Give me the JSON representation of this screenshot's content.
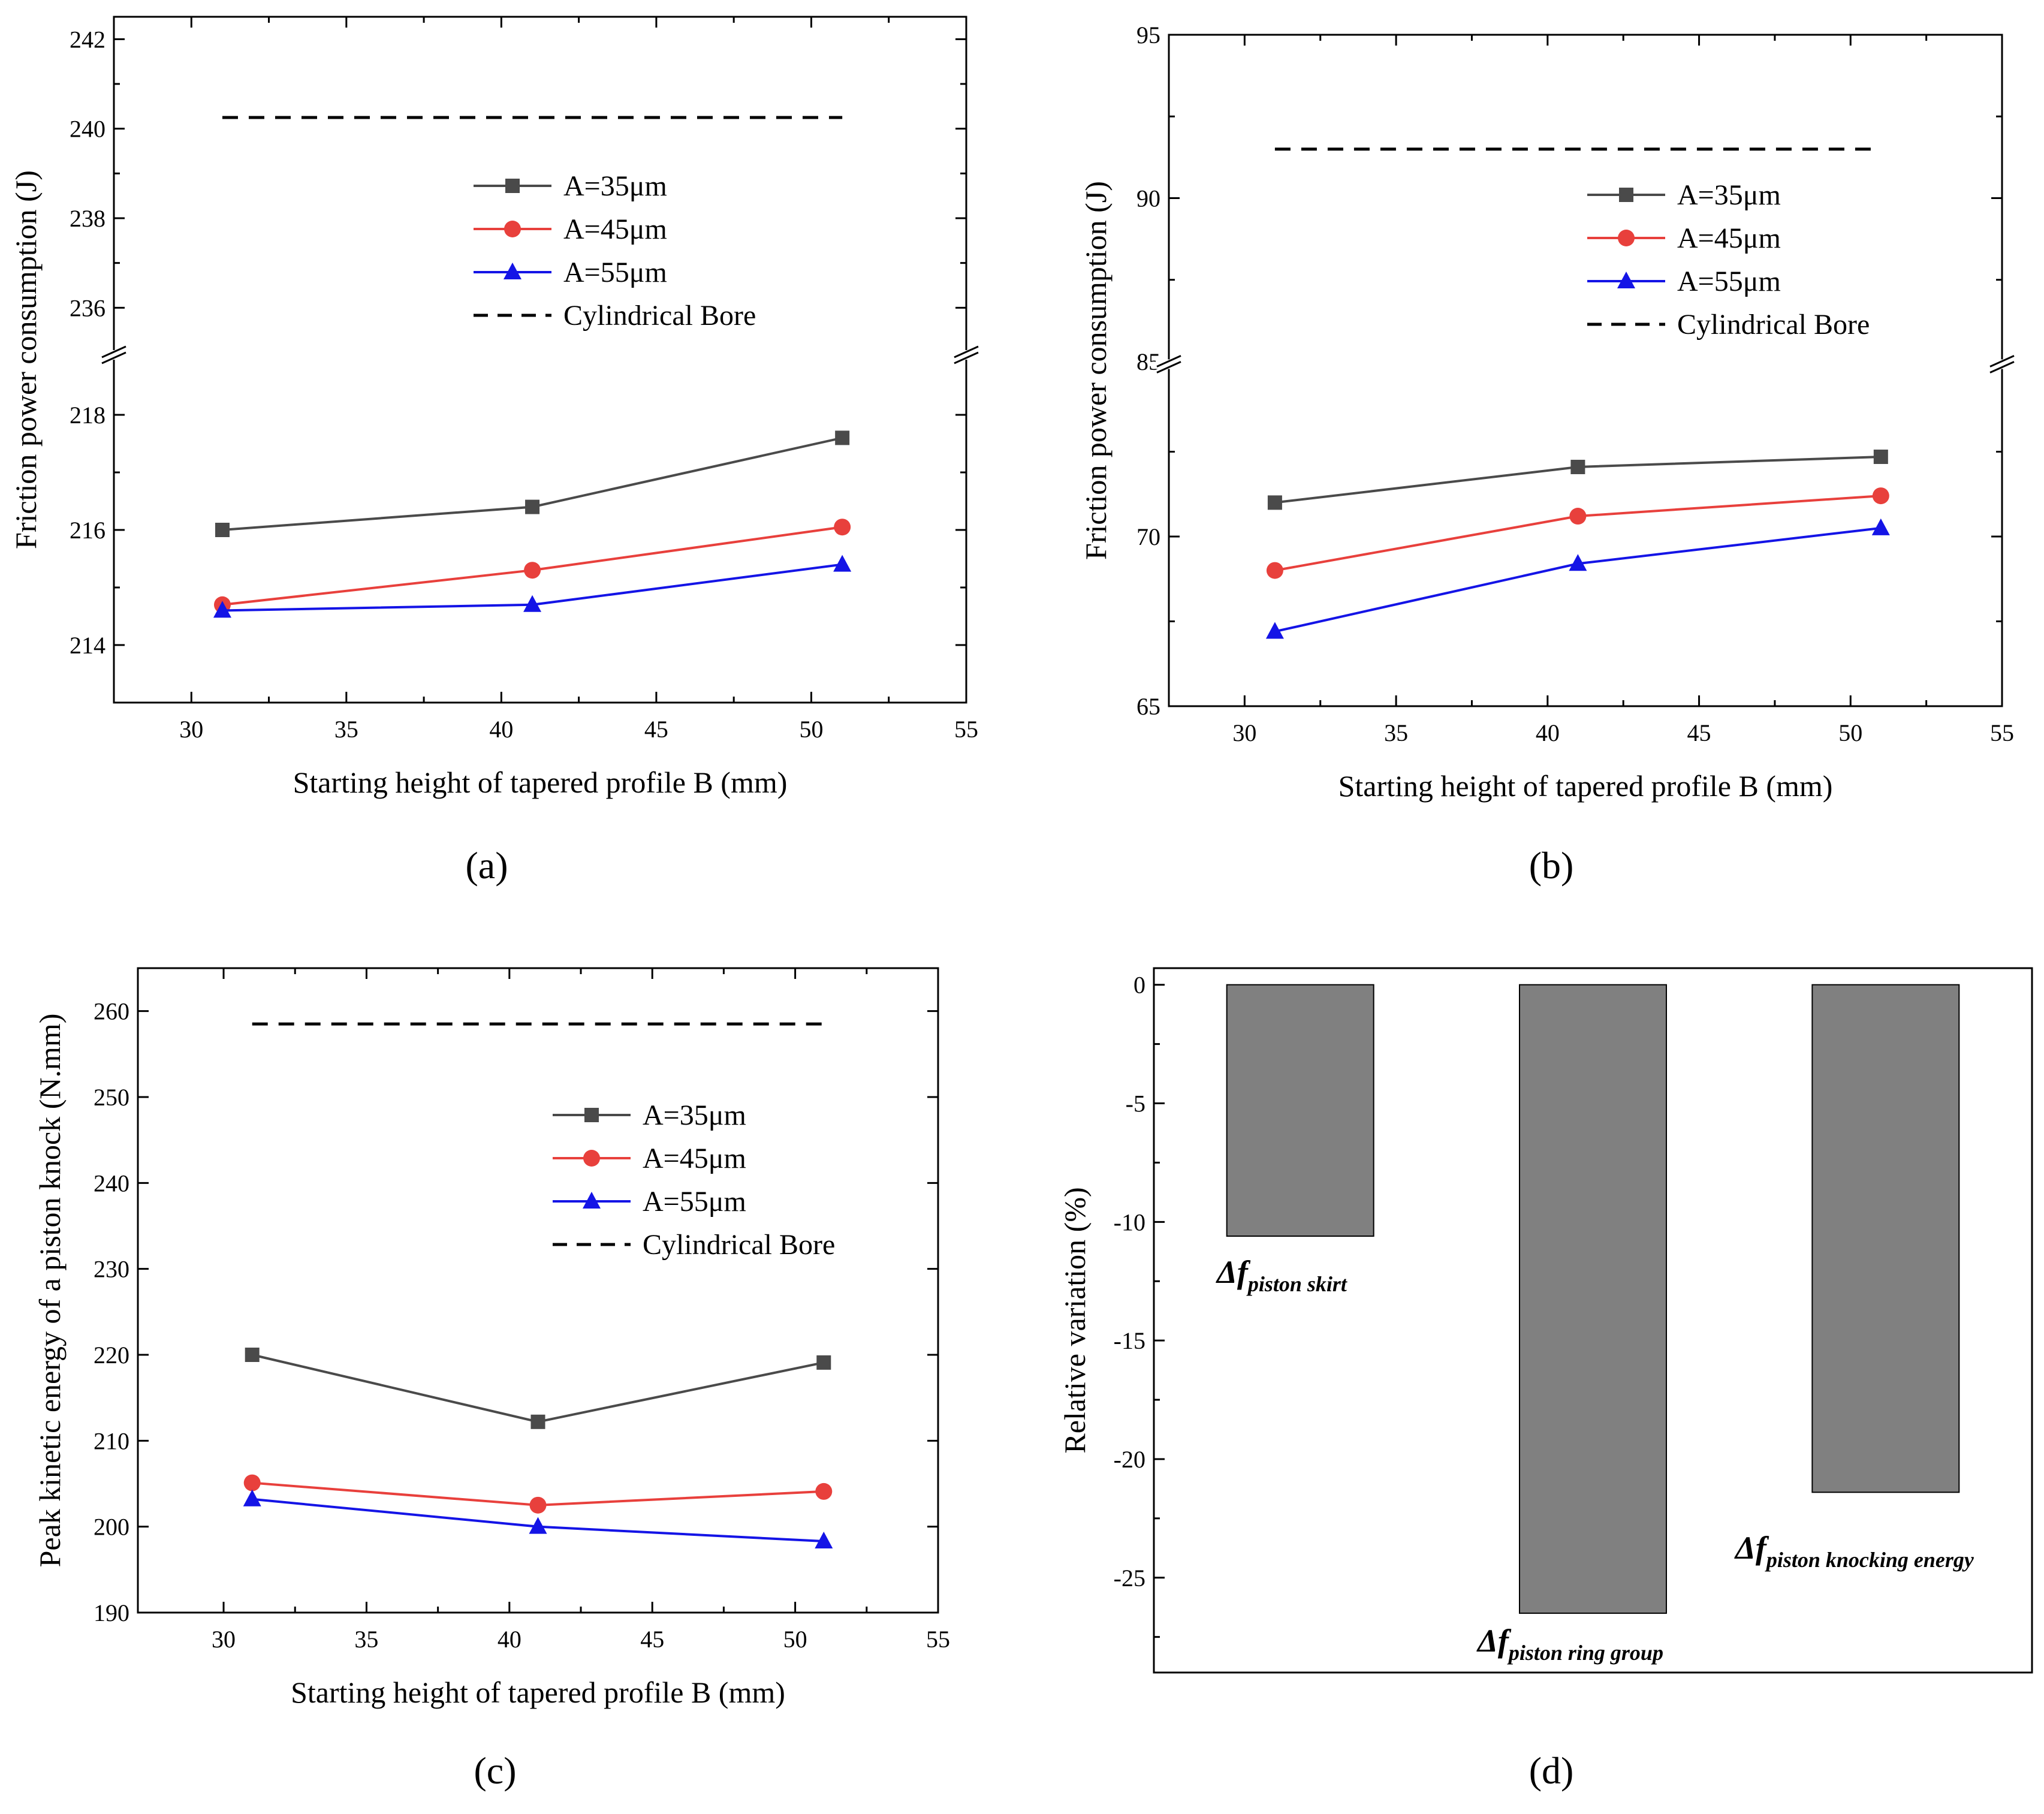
{
  "colors": {
    "A=35µm": "#4a4a4a",
    "A=45µm": "#e8403c",
    "A=55µm": "#1414e6",
    "bar": "#808080",
    "dashed": "#000000"
  },
  "chart_data": [
    {
      "panel": "a",
      "panel_label": "(a)",
      "type": "line",
      "xlabel": "Starting height of tapered profile B (mm)",
      "ylabel": "Friction power consumption (J)",
      "x": [
        31,
        41,
        51
      ],
      "xlim": [
        27.5,
        55
      ],
      "xticks": [
        30,
        35,
        40,
        45,
        50,
        55
      ],
      "y_broken": true,
      "y_lower": {
        "range": [
          213,
          219
        ],
        "ticks": [
          214,
          216,
          218
        ]
      },
      "y_upper": {
        "range": [
          235,
          242.5
        ],
        "ticks": [
          236,
          238,
          240,
          242
        ]
      },
      "series": [
        {
          "name": "A=35μm",
          "marker": "square",
          "values": [
            216.0,
            216.4,
            217.6
          ]
        },
        {
          "name": "A=45μm",
          "marker": "circle",
          "values": [
            214.7,
            215.3,
            216.05
          ]
        },
        {
          "name": "A=55μm",
          "marker": "triangle",
          "values": [
            214.6,
            214.7,
            215.4
          ]
        }
      ],
      "reference": {
        "name": "Cylindrical Bore",
        "style": "dashed",
        "value": 240.25,
        "x_range": [
          31,
          51
        ]
      },
      "legend": "center"
    },
    {
      "panel": "b",
      "panel_label": "(b)",
      "type": "line",
      "xlabel": "Starting height of tapered profile B (mm)",
      "ylabel": "Friction power consumption (J)",
      "x": [
        31,
        41,
        51
      ],
      "xlim": [
        27.5,
        55
      ],
      "xticks": [
        30,
        35,
        40,
        45,
        50,
        55
      ],
      "y_broken": true,
      "y_lower": {
        "range": [
          65,
          75
        ],
        "ticks": [
          65,
          70
        ]
      },
      "y_upper": {
        "range": [
          85,
          95
        ],
        "ticks": [
          85,
          90,
          95
        ]
      },
      "series": [
        {
          "name": "A=35μm",
          "marker": "square",
          "values": [
            71.0,
            72.05,
            72.35
          ]
        },
        {
          "name": "A=45μm",
          "marker": "circle",
          "values": [
            69.0,
            70.6,
            71.2
          ]
        },
        {
          "name": "A=55μm",
          "marker": "triangle",
          "values": [
            67.2,
            69.2,
            70.25
          ]
        }
      ],
      "reference": {
        "name": "Cylindrical Bore",
        "style": "dashed",
        "value": 91.5,
        "x_range": [
          31,
          51
        ]
      },
      "legend": "center-right"
    },
    {
      "panel": "c",
      "panel_label": "(c)",
      "type": "line",
      "xlabel": "Starting height of tapered profile B (mm)",
      "ylabel": "Peak kinetic energy of a piston knock (N.mm)",
      "x": [
        31,
        41,
        51
      ],
      "xlim": [
        27,
        55
      ],
      "xticks": [
        30,
        35,
        40,
        45,
        50,
        55
      ],
      "ylim": [
        190,
        265
      ],
      "yticks": [
        190,
        200,
        210,
        220,
        230,
        240,
        250,
        260
      ],
      "series": [
        {
          "name": "A=35μm",
          "marker": "square",
          "values": [
            220.0,
            212.2,
            219.1
          ]
        },
        {
          "name": "A=45μm",
          "marker": "circle",
          "values": [
            205.1,
            202.5,
            204.1
          ]
        },
        {
          "name": "A=55μm",
          "marker": "triangle",
          "values": [
            203.2,
            200.0,
            198.3
          ]
        }
      ],
      "reference": {
        "name": "Cylindrical Bore",
        "style": "dashed",
        "value": 258.5,
        "x_range": [
          31,
          51
        ]
      },
      "legend": "center-right"
    },
    {
      "panel": "d",
      "panel_label": "(d)",
      "type": "bar",
      "ylabel": "Relative variation (%)",
      "ylim": [
        -29,
        0.7
      ],
      "yticks": [
        0,
        -5,
        -10,
        -15,
        -20,
        -25
      ],
      "bars": [
        {
          "label_main": "Δf",
          "label_sub": "piston skirt",
          "value": -10.6
        },
        {
          "label_main": "Δf",
          "label_sub": "piston ring group",
          "value": -26.5
        },
        {
          "label_main": "Δf",
          "label_sub": "piston knocking energy",
          "value": -21.4
        }
      ]
    }
  ]
}
